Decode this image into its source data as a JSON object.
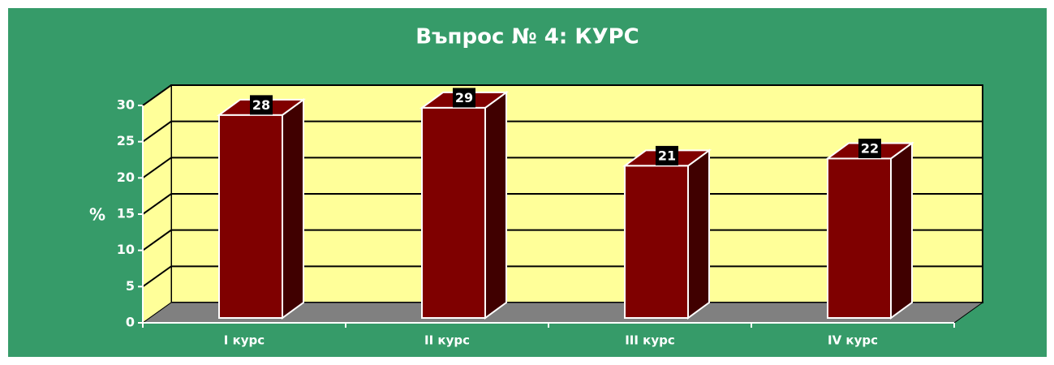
{
  "chart_data": {
    "type": "bar",
    "title": "Въпрос № 4: КУРС",
    "y_label": "%",
    "categories": [
      "I курс",
      "II курс",
      "III курс",
      "IV курс"
    ],
    "values": [
      28,
      29,
      21,
      22
    ],
    "color": "#7f0000",
    "ylim": [
      0,
      30
    ],
    "yticks": [
      0,
      5,
      10,
      15,
      20,
      25,
      30
    ],
    "grid": true
  }
}
